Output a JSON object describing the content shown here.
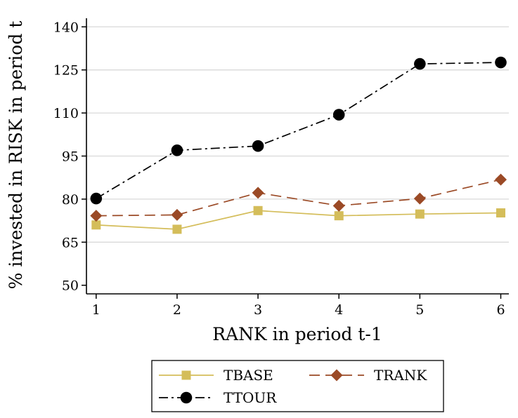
{
  "chart_data": {
    "type": "line",
    "xlabel": "RANK in period t-1",
    "ylabel": "% invested in RISK in period t",
    "x": [
      1,
      2,
      3,
      4,
      5,
      6
    ],
    "xticks": [
      "1",
      "2",
      "3",
      "4",
      "5",
      "6"
    ],
    "yticks": [
      "50",
      "65",
      "80",
      "95",
      "110",
      "125",
      "140"
    ],
    "ylim": [
      47,
      143
    ],
    "xlim": [
      0.88,
      6.1
    ],
    "grid": true,
    "legend_position": "bottom",
    "series": [
      {
        "name": "TBASE",
        "values": [
          71,
          69.5,
          76,
          74.2,
          74.8,
          75.2
        ],
        "color": "#d4bd5a",
        "marker": "square",
        "dash": "solid"
      },
      {
        "name": "TRANK",
        "values": [
          74.2,
          74.5,
          82.2,
          77.7,
          80.2,
          86.8
        ],
        "color": "#9b4a26",
        "marker": "diamond",
        "dash": "dashed"
      },
      {
        "name": "TTOUR",
        "values": [
          80.2,
          97,
          98.5,
          109.4,
          127.1,
          127.6
        ],
        "color": "#000000",
        "marker": "circle",
        "dash": "dashdot"
      }
    ]
  }
}
